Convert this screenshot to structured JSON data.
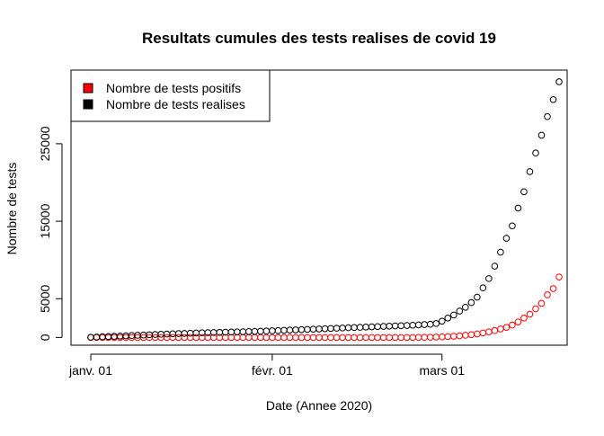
{
  "chart_data": {
    "type": "scatter",
    "title": "Resultats cumules des tests realises de covid 19",
    "xlabel": "Date (Annee 2020)",
    "ylabel": "Nombre de tests",
    "x_ticks": [
      "janv. 01",
      "févr. 01",
      "mars 01"
    ],
    "y_ticks": [
      0,
      5000,
      15000,
      25000
    ],
    "x_range": [
      "2020-01-01",
      "2020-03-19"
    ],
    "ylim": [
      -1000,
      34500
    ],
    "grid": false,
    "legend_position": "top-left",
    "series": [
      {
        "name": "Nombre de tests positifs",
        "color": "#ff0000",
        "start_date": "2020-01-01",
        "values": [
          0,
          0,
          0,
          0,
          0,
          0,
          0,
          0,
          0,
          0,
          0,
          0,
          0,
          0,
          0,
          0,
          0,
          0,
          0,
          0,
          0,
          0,
          0,
          0,
          0,
          0,
          0,
          0,
          0,
          0,
          0,
          0,
          0,
          0,
          0,
          0,
          0,
          0,
          0,
          0,
          0,
          0,
          0,
          0,
          0,
          0,
          0,
          0,
          0,
          0,
          0,
          0,
          0,
          0,
          0,
          0,
          10,
          20,
          30,
          50,
          80,
          110,
          160,
          210,
          280,
          360,
          460,
          580,
          720,
          890,
          1100,
          1300,
          1600,
          2000,
          2500,
          3000,
          3700,
          4400,
          5500,
          6300,
          7800
        ]
      },
      {
        "name": "Nombre de tests realises",
        "color": "#000000",
        "start_date": "2020-01-01",
        "values": [
          30,
          60,
          90,
          120,
          150,
          180,
          210,
          250,
          280,
          310,
          350,
          380,
          410,
          440,
          470,
          500,
          520,
          540,
          570,
          600,
          620,
          640,
          660,
          680,
          700,
          720,
          740,
          760,
          780,
          800,
          830,
          860,
          890,
          920,
          950,
          980,
          1010,
          1040,
          1070,
          1100,
          1130,
          1160,
          1190,
          1220,
          1250,
          1280,
          1310,
          1340,
          1370,
          1400,
          1430,
          1460,
          1490,
          1520,
          1550,
          1580,
          1620,
          1660,
          1700,
          1800,
          2100,
          2500,
          2900,
          3400,
          3900,
          4500,
          5200,
          6400,
          7600,
          9200,
          11000,
          12800,
          14400,
          16700,
          18800,
          21400,
          23800,
          26100,
          28500,
          30700,
          33000
        ]
      }
    ]
  }
}
